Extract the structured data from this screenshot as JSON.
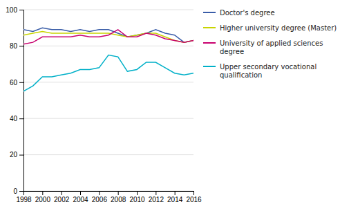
{
  "chart_data": {
    "type": "line",
    "x": [
      1998,
      1999,
      2000,
      2001,
      2002,
      2003,
      2004,
      2005,
      2006,
      2007,
      2008,
      2009,
      2010,
      2011,
      2012,
      2013,
      2014,
      2015,
      2016
    ],
    "series": [
      {
        "name": "Doctor's degree",
        "color": "#3a5da8",
        "values": [
          89,
          88,
          90,
          89,
          89,
          88,
          89,
          88,
          89,
          89,
          87,
          85,
          86,
          87,
          89,
          87,
          86,
          82,
          83
        ]
      },
      {
        "name": "Higher university degree (Master)",
        "color": "#c8d400",
        "values": [
          86,
          87,
          88,
          87,
          87,
          87,
          87,
          87,
          87,
          87,
          86,
          85,
          86,
          87,
          87,
          85,
          83,
          82,
          83
        ]
      },
      {
        "name": "University of applied sciences\ndegree",
        "color": "#c8006e",
        "values": [
          81,
          82,
          85,
          85,
          85,
          85,
          86,
          85,
          85,
          86,
          89,
          85,
          85,
          87,
          86,
          84,
          83,
          82,
          83
        ]
      },
      {
        "name": "Upper secondary vocational\nqualification",
        "color": "#00b0c8",
        "values": [
          55,
          58,
          63,
          63,
          64,
          65,
          67,
          67,
          68,
          75,
          74,
          66,
          67,
          71,
          71,
          68,
          65,
          64,
          65
        ]
      }
    ],
    "xlim": [
      1998,
      2016
    ],
    "ylim": [
      0,
      100
    ],
    "xticks": [
      1998,
      2000,
      2002,
      2004,
      2006,
      2008,
      2010,
      2012,
      2014,
      2016
    ],
    "yticks": [
      0,
      20,
      40,
      60,
      80,
      100
    ],
    "grid": true,
    "legend": "right"
  }
}
